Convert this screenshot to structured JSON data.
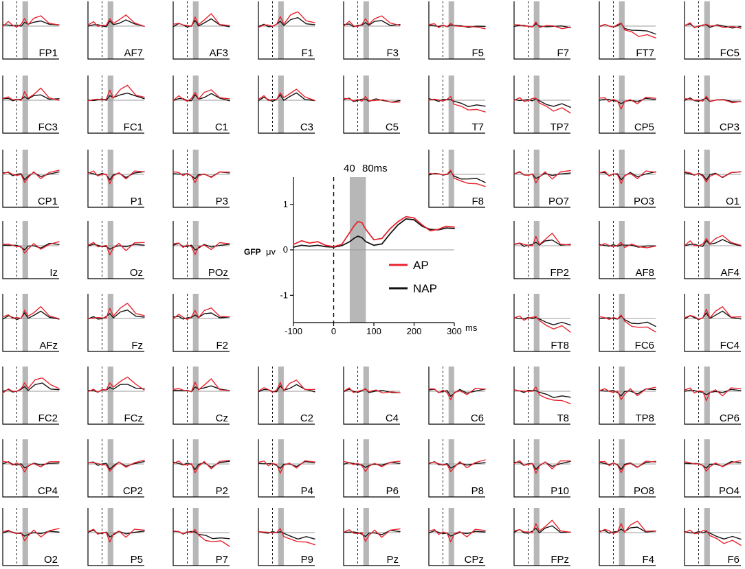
{
  "colors": {
    "AP": "#e8222c",
    "NAP": "#111111",
    "window": "#b7b7b7",
    "baseline": "#9a9a9a"
  },
  "chart_data": {
    "type": "line",
    "time_window_ms": [
      -100,
      300
    ],
    "highlight_window_ms": [
      40,
      80
    ],
    "gfp": {
      "title": "GFP",
      "y_unit": "μv",
      "ylim": [
        -1.6,
        1.6
      ],
      "yticks": [
        1,
        0,
        -1
      ],
      "xticks": [
        -100,
        0,
        100,
        200,
        300
      ],
      "x_unit": "ms",
      "window_labels": [
        "40",
        "80ms"
      ],
      "series": [
        {
          "name": "AP",
          "color": "#e8222c",
          "x": [
            -100,
            -80,
            -60,
            -40,
            -20,
            0,
            20,
            40,
            50,
            60,
            70,
            80,
            100,
            120,
            140,
            160,
            180,
            200,
            220,
            240,
            260,
            280,
            300
          ],
          "y": [
            0.12,
            0.2,
            0.15,
            0.18,
            0.1,
            0.07,
            0.12,
            0.38,
            0.52,
            0.62,
            0.6,
            0.45,
            0.22,
            0.25,
            0.46,
            0.62,
            0.73,
            0.7,
            0.55,
            0.42,
            0.45,
            0.52,
            0.5
          ]
        },
        {
          "name": "NAP",
          "color": "#111111",
          "x": [
            -100,
            -80,
            -60,
            -40,
            -20,
            0,
            20,
            40,
            50,
            60,
            70,
            80,
            100,
            120,
            140,
            160,
            180,
            200,
            220,
            240,
            260,
            280,
            300
          ],
          "y": [
            0.06,
            0.1,
            0.08,
            0.1,
            0.07,
            0.06,
            0.09,
            0.18,
            0.25,
            0.3,
            0.27,
            0.18,
            0.1,
            0.13,
            0.35,
            0.55,
            0.68,
            0.66,
            0.52,
            0.45,
            0.44,
            0.48,
            0.47
          ]
        }
      ]
    },
    "legend": [
      "AP",
      "NAP"
    ],
    "channels": [
      {
        "name": "FP1",
        "shape": "up"
      },
      {
        "name": "AF7",
        "shape": "up"
      },
      {
        "name": "AF3",
        "shape": "up"
      },
      {
        "name": "F1",
        "shape": "up2"
      },
      {
        "name": "F3",
        "shape": "up"
      },
      {
        "name": "F5",
        "shape": "flat"
      },
      {
        "name": "F7",
        "shape": "flat"
      },
      {
        "name": "FT7",
        "shape": "downlate"
      },
      {
        "name": "FC5",
        "shape": "flat"
      },
      {
        "name": "FC3",
        "shape": "up"
      },
      {
        "name": "FC1",
        "shape": "up2"
      },
      {
        "name": "C1",
        "shape": "up"
      },
      {
        "name": "C3",
        "shape": "up"
      },
      {
        "name": "C5",
        "shape": "flat"
      },
      {
        "name": "T7",
        "shape": "downlate"
      },
      {
        "name": "TP7",
        "shape": "downlate"
      },
      {
        "name": "CP5",
        "shape": "down"
      },
      {
        "name": "CP3",
        "shape": "flat"
      },
      {
        "name": "CP1",
        "shape": "down"
      },
      {
        "name": "P1",
        "shape": "down"
      },
      {
        "name": "P3",
        "shape": "down"
      },
      {
        "name": "F8",
        "shape": "downlate"
      },
      {
        "name": "PO7",
        "shape": "down"
      },
      {
        "name": "PO3",
        "shape": "down"
      },
      {
        "name": "O1",
        "shape": "down"
      },
      {
        "name": "Iz",
        "shape": "down"
      },
      {
        "name": "Oz",
        "shape": "down"
      },
      {
        "name": "POz",
        "shape": "down"
      },
      {
        "name": "FP2",
        "shape": "up"
      },
      {
        "name": "AF8",
        "shape": "flat"
      },
      {
        "name": "AF4",
        "shape": "up"
      },
      {
        "name": "AFz",
        "shape": "up"
      },
      {
        "name": "Fz",
        "shape": "up2"
      },
      {
        "name": "F2",
        "shape": "up"
      },
      {
        "name": "FT8",
        "shape": "downlate"
      },
      {
        "name": "FC6",
        "shape": "downlate"
      },
      {
        "name": "FC4",
        "shape": "up"
      },
      {
        "name": "FC2",
        "shape": "up2"
      },
      {
        "name": "FCz",
        "shape": "up2"
      },
      {
        "name": "Cz",
        "shape": "up"
      },
      {
        "name": "C2",
        "shape": "up"
      },
      {
        "name": "C4",
        "shape": "flat"
      },
      {
        "name": "C6",
        "shape": "down"
      },
      {
        "name": "T8",
        "shape": "downlate"
      },
      {
        "name": "TP8",
        "shape": "down"
      },
      {
        "name": "CP6",
        "shape": "down"
      },
      {
        "name": "CP4",
        "shape": "down"
      },
      {
        "name": "CP2",
        "shape": "down"
      },
      {
        "name": "P2",
        "shape": "down"
      },
      {
        "name": "P4",
        "shape": "down"
      },
      {
        "name": "P6",
        "shape": "down"
      },
      {
        "name": "P8",
        "shape": "down"
      },
      {
        "name": "P10",
        "shape": "down"
      },
      {
        "name": "PO8",
        "shape": "down"
      },
      {
        "name": "PO4",
        "shape": "down"
      },
      {
        "name": "O2",
        "shape": "down"
      },
      {
        "name": "P5",
        "shape": "down"
      },
      {
        "name": "P7",
        "shape": "downlate"
      },
      {
        "name": "P9",
        "shape": "downlate"
      },
      {
        "name": "Pz",
        "shape": "down"
      },
      {
        "name": "CPz",
        "shape": "down"
      },
      {
        "name": "FPz",
        "shape": "up"
      },
      {
        "name": "F4",
        "shape": "up"
      },
      {
        "name": "F6",
        "shape": "downlate"
      }
    ]
  }
}
